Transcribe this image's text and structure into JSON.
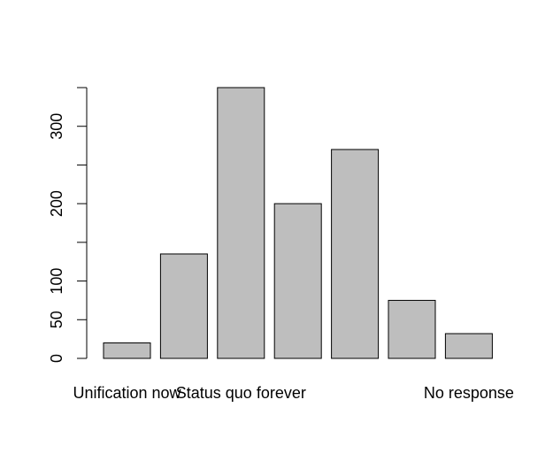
{
  "chart_data": {
    "type": "bar",
    "categories": [
      "Unification now",
      "",
      "Status quo forever",
      "",
      "",
      "",
      "No response"
    ],
    "values": [
      20,
      135,
      350,
      200,
      270,
      75,
      32
    ],
    "ylim": [
      0,
      350
    ],
    "yticks": [
      0,
      50,
      100,
      150,
      200,
      250,
      300,
      350
    ],
    "ytick_labels": [
      "0",
      "50",
      "100",
      "",
      "200",
      "",
      "300",
      ""
    ],
    "colors": {
      "bar_fill": "#bebebe",
      "bar_stroke": "#000000"
    },
    "grid": false
  }
}
